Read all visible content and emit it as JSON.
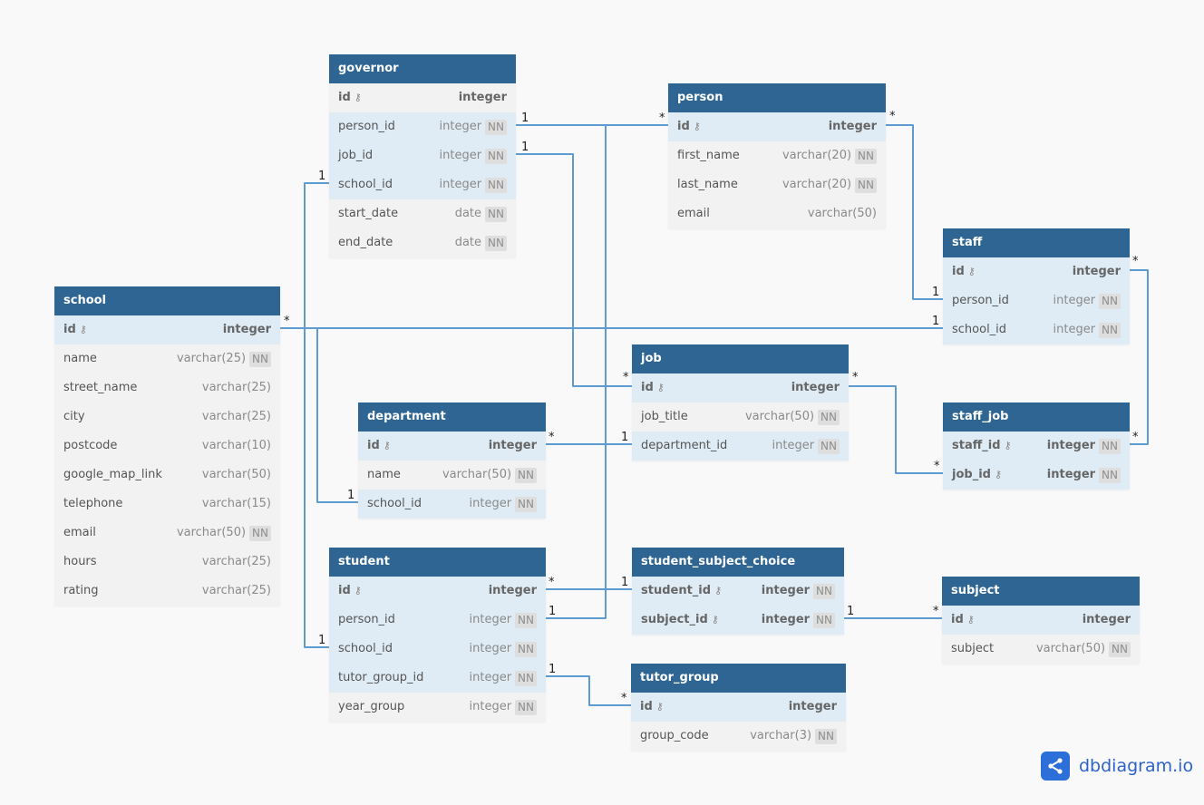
{
  "tables": [
    {
      "name": "governor",
      "columns": [
        {
          "name": "id",
          "type": "integer",
          "pk": true,
          "nn": false,
          "ref": false
        },
        {
          "name": "person_id",
          "type": "integer",
          "nn": true,
          "ref": true
        },
        {
          "name": "job_id",
          "type": "integer",
          "nn": true,
          "ref": true
        },
        {
          "name": "school_id",
          "type": "integer",
          "nn": true,
          "ref": true
        },
        {
          "name": "start_date",
          "type": "date",
          "nn": true,
          "ref": false
        },
        {
          "name": "end_date",
          "type": "date",
          "nn": true,
          "ref": false
        }
      ]
    },
    {
      "name": "person",
      "columns": [
        {
          "name": "id",
          "type": "integer",
          "pk": true,
          "ref": true
        },
        {
          "name": "first_name",
          "type": "varchar(20)",
          "nn": true
        },
        {
          "name": "last_name",
          "type": "varchar(20)",
          "nn": true
        },
        {
          "name": "email",
          "type": "varchar(50)"
        }
      ]
    },
    {
      "name": "staff",
      "columns": [
        {
          "name": "id",
          "type": "integer",
          "pk": true,
          "ref": true
        },
        {
          "name": "person_id",
          "type": "integer",
          "nn": true,
          "ref": true
        },
        {
          "name": "school_id",
          "type": "integer",
          "nn": true,
          "ref": true
        }
      ]
    },
    {
      "name": "school",
      "columns": [
        {
          "name": "id",
          "type": "integer",
          "pk": true,
          "ref": true
        },
        {
          "name": "name",
          "type": "varchar(25)",
          "nn": true
        },
        {
          "name": "street_name",
          "type": "varchar(25)"
        },
        {
          "name": "city",
          "type": "varchar(25)"
        },
        {
          "name": "postcode",
          "type": "varchar(10)"
        },
        {
          "name": "google_map_link",
          "type": "varchar(50)"
        },
        {
          "name": "telephone",
          "type": "varchar(15)"
        },
        {
          "name": "email",
          "type": "varchar(50)",
          "nn": true
        },
        {
          "name": "hours",
          "type": "varchar(25)"
        },
        {
          "name": "rating",
          "type": "varchar(25)"
        }
      ]
    },
    {
      "name": "job",
      "columns": [
        {
          "name": "id",
          "type": "integer",
          "pk": true,
          "ref": true
        },
        {
          "name": "job_title",
          "type": "varchar(50)",
          "nn": true
        },
        {
          "name": "department_id",
          "type": "integer",
          "nn": true,
          "ref": true
        }
      ]
    },
    {
      "name": "staff_job",
      "columns": [
        {
          "name": "staff_id",
          "type": "integer",
          "pk": true,
          "nn": true,
          "ref": true
        },
        {
          "name": "job_id",
          "type": "integer",
          "pk": true,
          "nn": true,
          "ref": true
        }
      ]
    },
    {
      "name": "department",
      "columns": [
        {
          "name": "id",
          "type": "integer",
          "pk": true,
          "ref": true
        },
        {
          "name": "name",
          "type": "varchar(50)",
          "nn": true
        },
        {
          "name": "school_id",
          "type": "integer",
          "nn": true,
          "ref": true
        }
      ]
    },
    {
      "name": "student",
      "columns": [
        {
          "name": "id",
          "type": "integer",
          "pk": true,
          "ref": true
        },
        {
          "name": "person_id",
          "type": "integer",
          "nn": true,
          "ref": true
        },
        {
          "name": "school_id",
          "type": "integer",
          "nn": true,
          "ref": true
        },
        {
          "name": "tutor_group_id",
          "type": "integer",
          "nn": true,
          "ref": true
        },
        {
          "name": "year_group",
          "type": "integer",
          "nn": true
        }
      ]
    },
    {
      "name": "student_subject_choice",
      "columns": [
        {
          "name": "student_id",
          "type": "integer",
          "pk": true,
          "nn": true,
          "ref": true
        },
        {
          "name": "subject_id",
          "type": "integer",
          "pk": true,
          "nn": true,
          "ref": true
        }
      ]
    },
    {
      "name": "subject",
      "columns": [
        {
          "name": "id",
          "type": "integer",
          "pk": true,
          "ref": true
        },
        {
          "name": "subject",
          "type": "varchar(50)",
          "nn": true
        }
      ]
    },
    {
      "name": "tutor_group",
      "columns": [
        {
          "name": "id",
          "type": "integer",
          "pk": true,
          "ref": true
        },
        {
          "name": "group_code",
          "type": "varchar(3)",
          "nn": true
        }
      ]
    }
  ],
  "relationships": [
    {
      "from": "governor.person_id",
      "from_card": "1",
      "to": "person.id",
      "to_card": "*"
    },
    {
      "from": "governor.job_id",
      "from_card": "1",
      "to": "job.id",
      "to_card": "*"
    },
    {
      "from": "governor.school_id",
      "from_card": "1",
      "to": "school.id",
      "to_card": "*"
    },
    {
      "from": "student.school_id",
      "from_card": "1",
      "to": "school.id",
      "to_card": "*"
    },
    {
      "from": "department.school_id",
      "from_card": "1",
      "to": "school.id",
      "to_card": "*"
    },
    {
      "from": "staff.school_id",
      "from_card": "1",
      "to": "school.id",
      "to_card": "*"
    },
    {
      "from": "staff.person_id",
      "from_card": "1",
      "to": "person.id",
      "to_card": "*"
    },
    {
      "from": "student.person_id",
      "from_card": "1",
      "to": "person.id",
      "to_card": "*"
    },
    {
      "from": "staff_job.staff_id",
      "from_card": "*",
      "to": "staff.id",
      "to_card": "*"
    },
    {
      "from": "staff_job.job_id",
      "from_card": "*",
      "to": "job.id",
      "to_card": "*"
    },
    {
      "from": "job.department_id",
      "from_card": "1",
      "to": "department.id",
      "to_card": "*"
    },
    {
      "from": "student_subject_choice.student_id",
      "from_card": "1",
      "to": "student.id",
      "to_card": "*"
    },
    {
      "from": "student_subject_choice.subject_id",
      "from_card": "1",
      "to": "subject.id",
      "to_card": "*"
    },
    {
      "from": "student.tutor_group_id",
      "from_card": "1",
      "to": "tutor_group.id",
      "to_card": "*"
    }
  ],
  "colors": {
    "header": "#2f6592",
    "link": "#5e9bd1",
    "ref_row": "#dfecf5",
    "row": "#f2f2f2"
  },
  "nn_label": "NN",
  "brand": {
    "name": "dbdiagram.io",
    "icon": "share-nodes-icon"
  }
}
